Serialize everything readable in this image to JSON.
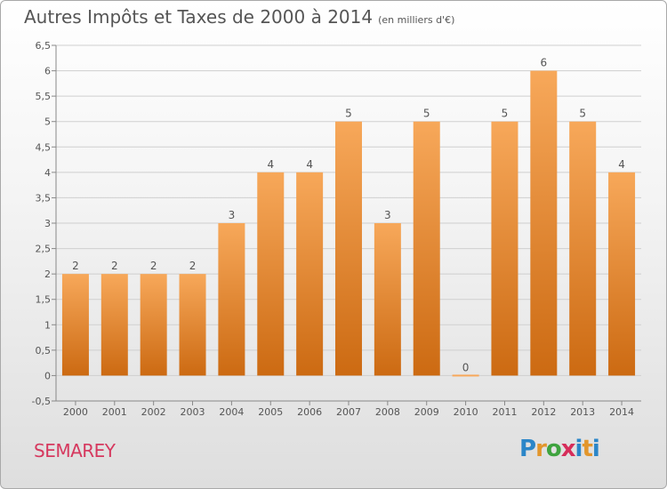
{
  "header": {
    "title": "Autres Impôts et Taxes de 2000 à 2014",
    "unit": "(en milliers d'€)"
  },
  "footer": {
    "commune": "SEMAREY",
    "logo_text": "Proxiti",
    "logo_colors": [
      "#2b86c8",
      "#e2962c",
      "#3ea33e",
      "#d62d5a",
      "#2b86c8",
      "#e2962c"
    ]
  },
  "chart_data": {
    "type": "bar",
    "title": "Autres Impôts et Taxes de 2000 à 2014",
    "subtitle": "(en milliers d'€)",
    "xlabel": "",
    "ylabel": "",
    "categories": [
      "2000",
      "2001",
      "2002",
      "2003",
      "2004",
      "2005",
      "2006",
      "2007",
      "2008",
      "2009",
      "2010",
      "2011",
      "2012",
      "2013",
      "2014"
    ],
    "values": [
      2,
      2,
      2,
      2,
      3,
      4,
      4,
      5,
      3,
      5,
      0,
      5,
      6,
      5,
      4
    ],
    "data_labels": [
      "2",
      "2",
      "2",
      "2",
      "3",
      "4",
      "4",
      "5",
      "3",
      "5",
      "0",
      "5",
      "6",
      "5",
      "4"
    ],
    "ylim": [
      -0.5,
      6.5
    ],
    "yticks": [
      "-0,5",
      "0",
      "0,5",
      "1",
      "1,5",
      "2",
      "2,5",
      "3",
      "3,5",
      "4",
      "4,5",
      "5",
      "5,5",
      "6",
      "6,5"
    ],
    "grid": true,
    "bar_color_top": "#f7a85a",
    "bar_color_bottom": "#cc6a12"
  }
}
